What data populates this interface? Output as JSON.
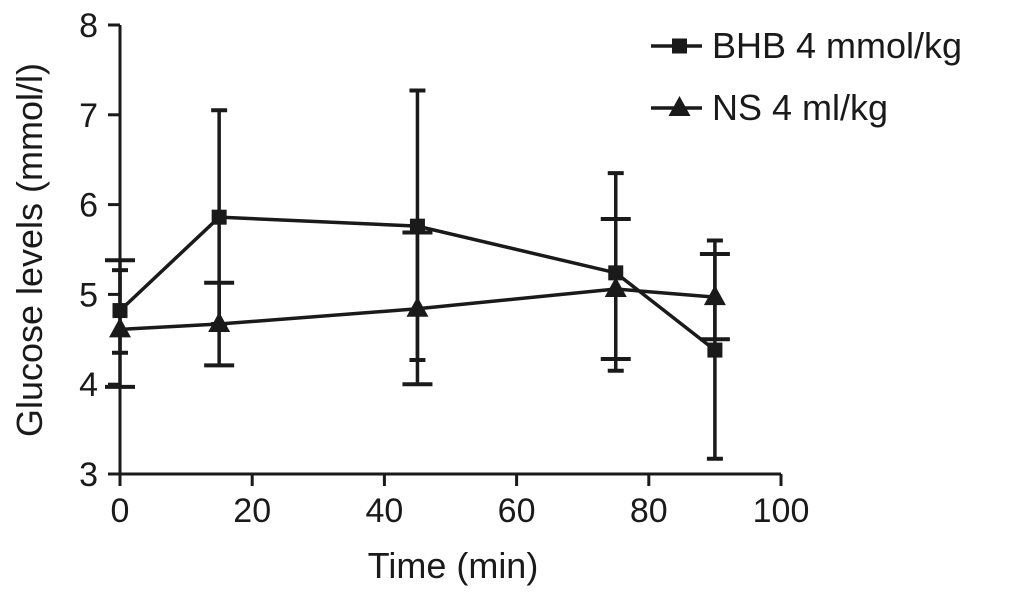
{
  "chart_data": {
    "type": "line",
    "xlabel": "Time (min)",
    "ylabel": "Glucose levels (mmol/l)",
    "xlim": [
      0,
      100
    ],
    "ylim": [
      3,
      8
    ],
    "xticks": [
      "0",
      "20",
      "40",
      "60",
      "80",
      "100"
    ],
    "yticks": [
      "3",
      "4",
      "5",
      "6",
      "7",
      "8"
    ],
    "grid": false,
    "legend_position": "top-right",
    "series": [
      {
        "name": "BHB 4 mmol/kg",
        "marker": "square",
        "color": "#1a1a1a",
        "x": [
          0,
          15,
          45,
          75,
          90
        ],
        "y": [
          4.82,
          5.86,
          5.76,
          5.24,
          4.38
        ],
        "err_upper": [
          5.27,
          7.05,
          7.27,
          6.35,
          5.6
        ],
        "err_lower": [
          4.35,
          4.67,
          4.27,
          4.15,
          3.17
        ]
      },
      {
        "name": "NS 4 ml/kg",
        "marker": "triangle",
        "color": "#1a1a1a",
        "x": [
          0,
          15,
          45,
          75,
          90
        ],
        "y": [
          4.61,
          4.67,
          4.84,
          5.06,
          4.97
        ],
        "err_upper": [
          5.38,
          5.13,
          5.69,
          5.84,
          5.45
        ],
        "err_lower": [
          3.97,
          4.21,
          4.0,
          4.28,
          4.5
        ]
      }
    ]
  }
}
